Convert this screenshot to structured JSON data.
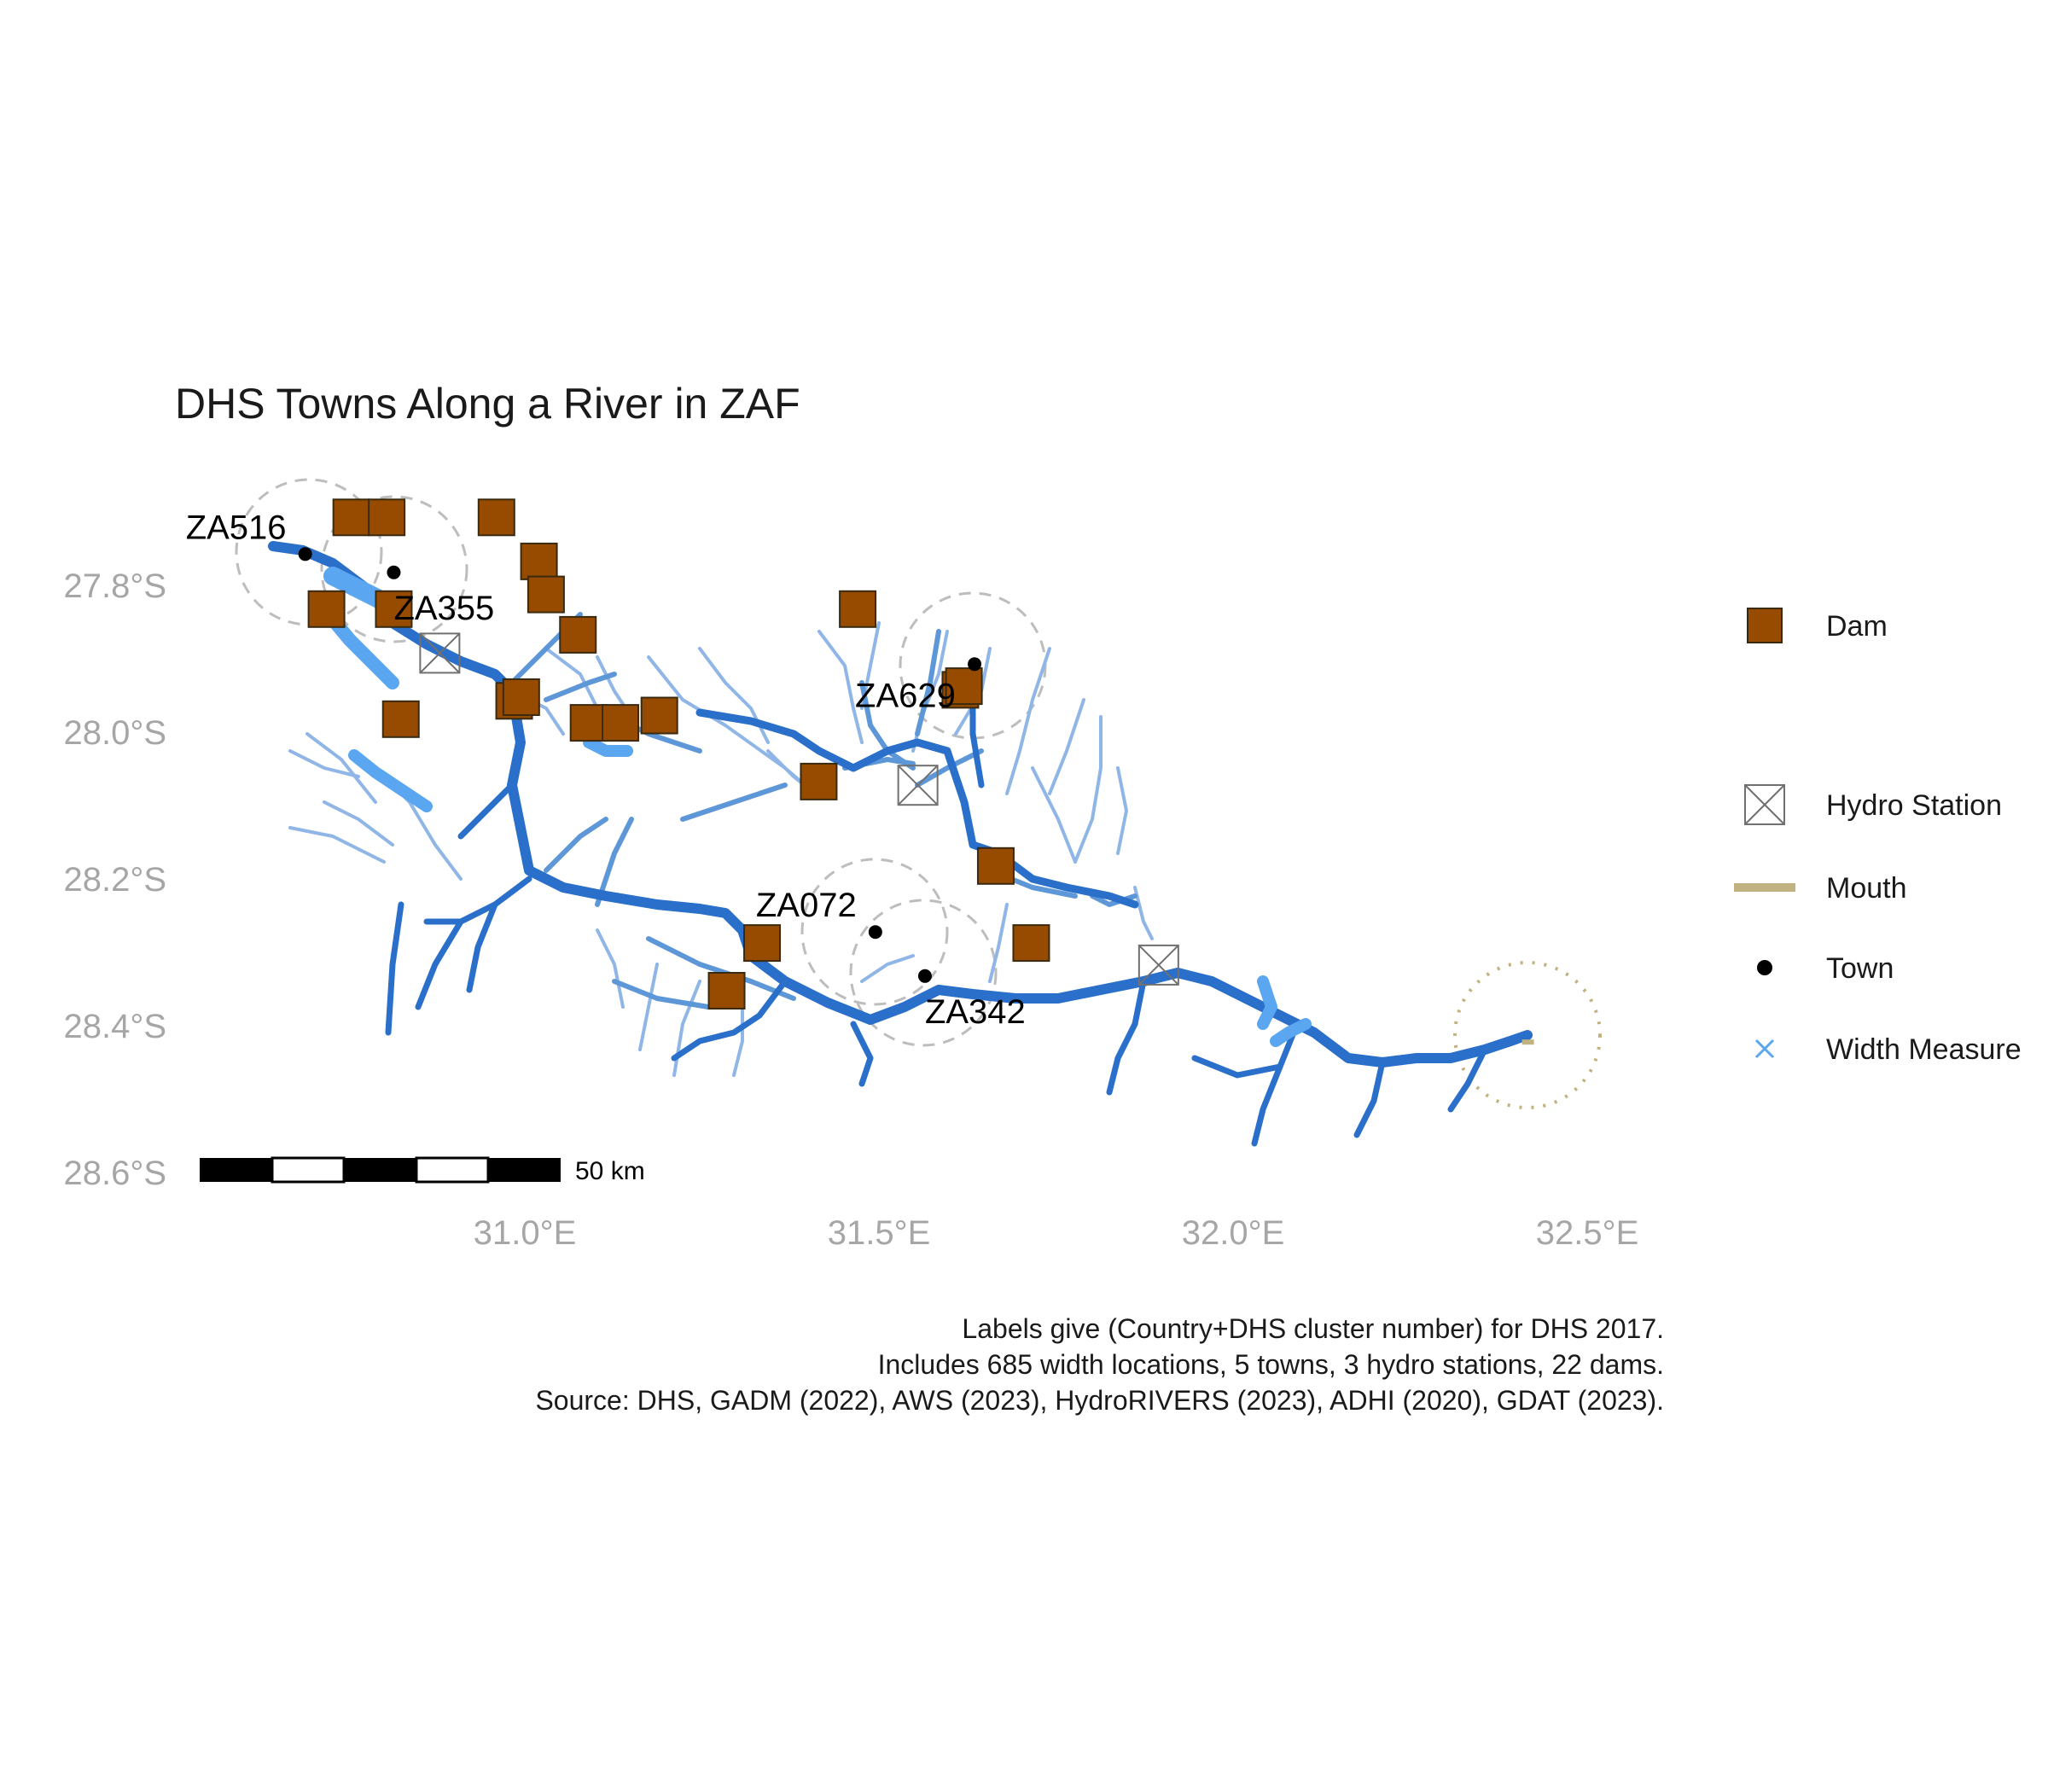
{
  "title": "DHS Towns Along a River in ZAF",
  "axes": {
    "y_ticks": [
      "27.8°S",
      "28.0°S",
      "28.2°S",
      "28.4°S",
      "28.6°S"
    ],
    "x_ticks": [
      "31.0°E",
      "31.5°E",
      "32.0°E",
      "32.5°E"
    ]
  },
  "towns": [
    {
      "label": "ZA516",
      "lon": 30.69,
      "lat": -27.755
    },
    {
      "label": "ZA355",
      "lon": 30.815,
      "lat": -27.78
    },
    {
      "label": "ZA629",
      "lon": 31.635,
      "lat": -27.905
    },
    {
      "label": "ZA072",
      "lon": 31.495,
      "lat": -28.27
    },
    {
      "label": "ZA342",
      "lon": 31.565,
      "lat": -28.33
    }
  ],
  "dams": [
    {
      "lon": 30.755,
      "lat": -27.705
    },
    {
      "lon": 30.805,
      "lat": -27.705
    },
    {
      "lon": 30.96,
      "lat": -27.705
    },
    {
      "lon": 31.02,
      "lat": -27.765
    },
    {
      "lon": 31.03,
      "lat": -27.81
    },
    {
      "lon": 30.72,
      "lat": -27.83
    },
    {
      "lon": 30.815,
      "lat": -27.83
    },
    {
      "lon": 31.075,
      "lat": -27.865
    },
    {
      "lon": 31.47,
      "lat": -27.83
    },
    {
      "lon": 31.615,
      "lat": -27.94
    },
    {
      "lon": 30.985,
      "lat": -27.955
    },
    {
      "lon": 30.995,
      "lat": -27.95
    },
    {
      "lon": 30.825,
      "lat": -27.98
    },
    {
      "lon": 31.09,
      "lat": -27.985
    },
    {
      "lon": 31.135,
      "lat": -27.985
    },
    {
      "lon": 31.19,
      "lat": -27.975
    },
    {
      "lon": 31.415,
      "lat": -28.065
    },
    {
      "lon": 31.665,
      "lat": -28.18
    },
    {
      "lon": 31.335,
      "lat": -28.285
    },
    {
      "lon": 31.715,
      "lat": -28.285
    },
    {
      "lon": 31.285,
      "lat": -28.35
    },
    {
      "lon": 31.62,
      "lat": -27.935
    }
  ],
  "hydro_stations": [
    {
      "lon": 30.88,
      "lat": -27.89
    },
    {
      "lon": 31.555,
      "lat": -28.07
    },
    {
      "lon": 31.895,
      "lat": -28.315
    }
  ],
  "mouth": {
    "lon": 32.42,
    "lat": -28.42
  },
  "scale_bar": {
    "label": "50 km"
  },
  "legend": {
    "dam": "Dam",
    "hydro": "Hydro Station",
    "mouth": "Mouth",
    "town": "Town",
    "width": "Width Measure"
  },
  "caption": {
    "line1": "Labels give (Country+DHS cluster number) for DHS 2017.",
    "line2": "Includes 685 width locations, 5 towns, 3 hydro stations, 22 dams.",
    "line3": "Source: DHS, GADM (2022), AWS (2023), HydroRIVERS (2023), ADHI (2020), GDAT (2023)."
  },
  "colors": {
    "main_river": "#2a6fc9",
    "tributary": "#5e97d8",
    "minor_stream": "#8fb6e6",
    "width_measure": "#5aa6f0",
    "dam_fill": "#964b00",
    "dam_stroke": "#3a2a10",
    "hydro_stroke": "#707070",
    "mouth": "#c2b280",
    "buffer": "#bdbdbd",
    "town": "#000000"
  }
}
